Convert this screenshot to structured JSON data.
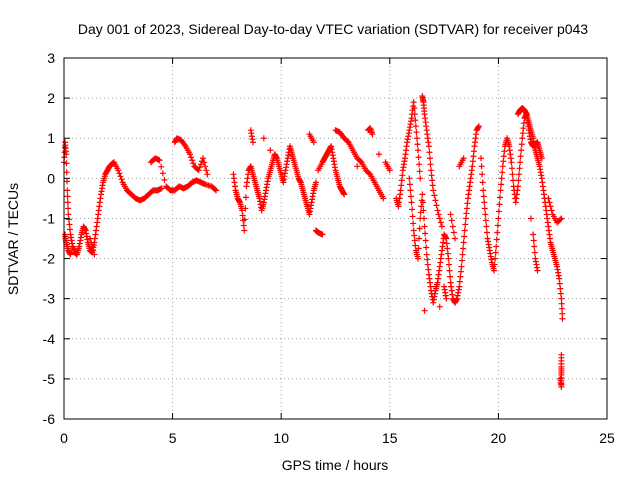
{
  "chart_data": {
    "type": "scatter",
    "title": "Day 001 of 2023, Sidereal Day-to-day VTEC variation (SDTVAR) for receiver p043",
    "xlabel": "GPS time / hours",
    "ylabel": "SDTVAR / TECUs",
    "xlim": [
      0,
      25
    ],
    "ylim": [
      -6,
      3
    ],
    "xticks": [
      "0",
      "5",
      "10",
      "15",
      "20",
      "25"
    ],
    "yticks": [
      "-6",
      "-5",
      "-4",
      "-3",
      "-2",
      "-1",
      "0",
      "1",
      "2",
      "3"
    ],
    "grid": true,
    "marker": "+",
    "series_color": "#ff0000",
    "series": [
      {
        "name": "SDTVAR",
        "points": [
          [
            0.0,
            0.4
          ],
          [
            0.05,
            0.9
          ],
          [
            0.1,
            0.6
          ],
          [
            0.15,
            -0.3
          ],
          [
            0.2,
            -0.9
          ],
          [
            0.3,
            -1.4
          ],
          [
            0.4,
            -1.7
          ],
          [
            0.5,
            -1.85
          ],
          [
            0.6,
            -1.9
          ],
          [
            0.7,
            -1.7
          ],
          [
            0.8,
            -1.4
          ],
          [
            0.9,
            -1.2
          ],
          [
            1.0,
            -1.3
          ],
          [
            1.1,
            -1.6
          ],
          [
            1.2,
            -1.8
          ],
          [
            1.3,
            -1.85
          ],
          [
            1.4,
            -1.6
          ],
          [
            1.5,
            -1.2
          ],
          [
            1.6,
            -0.8
          ],
          [
            1.7,
            -0.4
          ],
          [
            1.8,
            -0.1
          ],
          [
            1.9,
            0.1
          ],
          [
            2.0,
            0.2
          ],
          [
            2.1,
            0.3
          ],
          [
            2.2,
            0.35
          ],
          [
            2.3,
            0.4
          ],
          [
            2.5,
            0.2
          ],
          [
            2.7,
            -0.1
          ],
          [
            2.9,
            -0.3
          ],
          [
            3.1,
            -0.4
          ],
          [
            3.3,
            -0.5
          ],
          [
            3.5,
            -0.55
          ],
          [
            3.7,
            -0.5
          ],
          [
            3.9,
            -0.4
          ],
          [
            4.1,
            -0.3
          ],
          [
            4.3,
            -0.3
          ],
          [
            4.5,
            -0.25
          ],
          [
            4.0,
            0.4
          ],
          [
            4.2,
            0.5
          ],
          [
            4.4,
            0.45
          ],
          [
            4.7,
            -0.2
          ],
          [
            4.9,
            -0.3
          ],
          [
            5.1,
            -0.3
          ],
          [
            5.3,
            -0.2
          ],
          [
            5.5,
            -0.25
          ],
          [
            5.7,
            -0.2
          ],
          [
            5.9,
            -0.1
          ],
          [
            6.1,
            -0.05
          ],
          [
            6.3,
            -0.1
          ],
          [
            6.5,
            -0.15
          ],
          [
            6.8,
            -0.2
          ],
          [
            7.0,
            -0.3
          ],
          [
            5.1,
            0.9
          ],
          [
            5.2,
            1.0
          ],
          [
            5.4,
            0.95
          ],
          [
            5.6,
            0.8
          ],
          [
            5.8,
            0.6
          ],
          [
            6.0,
            0.3
          ],
          [
            6.2,
            0.2
          ],
          [
            6.4,
            0.5
          ],
          [
            6.6,
            0.1
          ],
          [
            0.05,
            -1.4
          ],
          [
            0.1,
            -1.6
          ],
          [
            0.2,
            -1.8
          ],
          [
            0.3,
            -1.9
          ],
          [
            1.2,
            -1.5
          ],
          [
            1.4,
            -1.9
          ],
          [
            7.8,
            0.1
          ],
          [
            7.9,
            -0.3
          ],
          [
            8.0,
            -0.5
          ],
          [
            8.1,
            -0.6
          ],
          [
            8.2,
            -0.8
          ],
          [
            8.3,
            -1.3
          ],
          [
            8.4,
            -0.2
          ],
          [
            8.5,
            0.2
          ],
          [
            8.6,
            0.3
          ],
          [
            8.7,
            0.1
          ],
          [
            8.8,
            -0.1
          ],
          [
            8.9,
            -0.3
          ],
          [
            9.0,
            -0.5
          ],
          [
            9.1,
            -0.8
          ],
          [
            9.2,
            -0.6
          ],
          [
            9.3,
            -0.3
          ],
          [
            9.4,
            0.0
          ],
          [
            9.5,
            0.2
          ],
          [
            9.6,
            0.4
          ],
          [
            9.7,
            0.6
          ],
          [
            9.8,
            0.5
          ],
          [
            9.9,
            0.3
          ],
          [
            10.0,
            0.1
          ],
          [
            10.1,
            -0.1
          ],
          [
            10.2,
            0.2
          ],
          [
            10.3,
            0.5
          ],
          [
            10.4,
            0.8
          ],
          [
            10.5,
            0.6
          ],
          [
            10.6,
            0.4
          ],
          [
            10.7,
            0.2
          ],
          [
            10.8,
            0.0
          ],
          [
            10.9,
            -0.1
          ],
          [
            11.0,
            -0.3
          ],
          [
            11.1,
            -0.5
          ],
          [
            11.2,
            -0.7
          ],
          [
            11.3,
            -0.9
          ],
          [
            11.4,
            -0.6
          ],
          [
            11.5,
            -0.3
          ],
          [
            11.6,
            -0.1
          ],
          [
            8.6,
            1.2
          ],
          [
            8.7,
            0.9
          ],
          [
            9.2,
            1.0
          ],
          [
            9.5,
            0.7
          ],
          [
            11.3,
            1.1
          ],
          [
            11.5,
            0.9
          ],
          [
            11.6,
            -1.3
          ],
          [
            11.7,
            -1.35
          ],
          [
            11.9,
            -1.4
          ],
          [
            11.7,
            0.2
          ],
          [
            11.9,
            0.4
          ],
          [
            12.0,
            0.5
          ],
          [
            12.1,
            0.6
          ],
          [
            12.2,
            0.7
          ],
          [
            12.3,
            0.8
          ],
          [
            12.4,
            0.5
          ],
          [
            12.5,
            0.2
          ],
          [
            12.6,
            0.0
          ],
          [
            12.7,
            -0.2
          ],
          [
            12.8,
            -0.3
          ],
          [
            12.9,
            -0.4
          ],
          [
            12.5,
            1.2
          ],
          [
            12.7,
            1.15
          ],
          [
            12.9,
            1.0
          ],
          [
            13.1,
            0.9
          ],
          [
            13.3,
            0.7
          ],
          [
            13.5,
            0.5
          ],
          [
            13.7,
            0.4
          ],
          [
            13.9,
            0.2
          ],
          [
            14.1,
            0.1
          ],
          [
            14.3,
            -0.1
          ],
          [
            14.5,
            -0.3
          ],
          [
            14.7,
            -0.5
          ],
          [
            13.5,
            0.3
          ],
          [
            14.0,
            1.2
          ],
          [
            14.1,
            1.25
          ],
          [
            14.2,
            1.1
          ],
          [
            14.5,
            0.6
          ],
          [
            14.8,
            0.4
          ],
          [
            15.0,
            0.2
          ],
          [
            15.3,
            -0.5
          ],
          [
            15.4,
            -0.7
          ],
          [
            15.5,
            -0.3
          ],
          [
            15.6,
            0.2
          ],
          [
            15.7,
            0.5
          ],
          [
            15.8,
            0.9
          ],
          [
            15.9,
            1.2
          ],
          [
            16.0,
            1.5
          ],
          [
            16.1,
            1.9
          ],
          [
            16.2,
            1.3
          ],
          [
            16.3,
            0.7
          ],
          [
            16.4,
            0.0
          ],
          [
            15.9,
            0.0
          ],
          [
            16.0,
            -0.6
          ],
          [
            16.1,
            -1.3
          ],
          [
            16.2,
            -1.8
          ],
          [
            16.3,
            -2.0
          ],
          [
            16.4,
            -1.0
          ],
          [
            16.5,
            -0.4
          ],
          [
            16.6,
            -1.2
          ],
          [
            16.7,
            -1.9
          ],
          [
            16.8,
            -2.4
          ],
          [
            16.9,
            -2.8
          ],
          [
            17.0,
            -3.1
          ],
          [
            17.1,
            -2.8
          ],
          [
            17.2,
            -2.6
          ],
          [
            17.3,
            -2.2
          ],
          [
            17.4,
            -1.8
          ],
          [
            17.5,
            -1.4
          ],
          [
            17.6,
            -1.5
          ],
          [
            17.7,
            -2.0
          ],
          [
            17.8,
            -2.6
          ],
          [
            17.9,
            -3.0
          ],
          [
            18.0,
            -3.1
          ],
          [
            18.1,
            -3.0
          ],
          [
            18.2,
            -2.7
          ],
          [
            18.3,
            -2.2
          ],
          [
            18.4,
            -1.6
          ],
          [
            18.5,
            -1.0
          ],
          [
            18.6,
            -0.5
          ],
          [
            18.7,
            -0.1
          ],
          [
            18.8,
            0.3
          ],
          [
            18.9,
            0.8
          ],
          [
            19.0,
            1.2
          ],
          [
            19.1,
            1.3
          ],
          [
            16.5,
            2.05
          ],
          [
            16.55,
            1.9
          ],
          [
            16.6,
            1.6
          ],
          [
            16.7,
            1.2
          ],
          [
            16.8,
            0.8
          ],
          [
            16.9,
            0.2
          ],
          [
            17.0,
            -0.3
          ],
          [
            17.2,
            -0.8
          ],
          [
            17.4,
            -1.2
          ],
          [
            17.8,
            -0.9
          ],
          [
            18.0,
            -1.5
          ],
          [
            18.2,
            0.3
          ],
          [
            18.4,
            0.5
          ],
          [
            17.5,
            -2.7
          ],
          [
            17.6,
            -3.0
          ],
          [
            16.6,
            -3.3
          ],
          [
            17.3,
            -3.2
          ],
          [
            19.2,
            0.5
          ],
          [
            19.3,
            -0.3
          ],
          [
            19.4,
            -0.9
          ],
          [
            19.5,
            -1.5
          ],
          [
            19.6,
            -1.8
          ],
          [
            19.7,
            -2.1
          ],
          [
            19.8,
            -2.3
          ],
          [
            19.9,
            -1.7
          ],
          [
            20.0,
            -1.0
          ],
          [
            20.1,
            -0.3
          ],
          [
            20.2,
            0.3
          ],
          [
            20.3,
            0.8
          ],
          [
            20.4,
            1.0
          ],
          [
            20.5,
            0.8
          ],
          [
            20.6,
            0.4
          ],
          [
            20.7,
            -0.2
          ],
          [
            20.8,
            -0.6
          ],
          [
            20.9,
            -0.2
          ],
          [
            21.0,
            0.4
          ],
          [
            21.1,
            1.0
          ],
          [
            21.2,
            1.5
          ],
          [
            21.3,
            1.6
          ],
          [
            21.4,
            1.4
          ],
          [
            21.5,
            1.2
          ],
          [
            21.6,
            1.0
          ],
          [
            21.7,
            0.7
          ],
          [
            21.8,
            0.5
          ],
          [
            21.9,
            0.3
          ],
          [
            22.0,
            0.0
          ],
          [
            22.1,
            -0.4
          ],
          [
            22.2,
            -0.8
          ],
          [
            22.3,
            -1.2
          ],
          [
            22.4,
            -1.6
          ],
          [
            22.5,
            -1.8
          ],
          [
            22.6,
            -2.0
          ],
          [
            22.7,
            -2.2
          ],
          [
            22.8,
            -2.5
          ],
          [
            22.9,
            -3.0
          ],
          [
            22.95,
            -3.5
          ],
          [
            20.9,
            1.6
          ],
          [
            21.0,
            1.7
          ],
          [
            21.1,
            1.75
          ],
          [
            21.2,
            1.7
          ],
          [
            21.3,
            1.6
          ],
          [
            21.4,
            1.2
          ],
          [
            21.5,
            0.9
          ],
          [
            21.6,
            0.8
          ],
          [
            21.7,
            0.85
          ],
          [
            21.8,
            0.9
          ],
          [
            21.9,
            0.7
          ],
          [
            22.0,
            0.5
          ],
          [
            21.6,
            -1.4
          ],
          [
            21.7,
            -2.0
          ],
          [
            21.8,
            -2.3
          ],
          [
            21.5,
            -1.0
          ],
          [
            22.3,
            -0.5
          ],
          [
            22.5,
            -0.9
          ],
          [
            22.7,
            -1.1
          ],
          [
            22.9,
            -1.0
          ],
          [
            22.9,
            -4.4
          ],
          [
            22.9,
            -4.7
          ],
          [
            22.9,
            -4.9
          ],
          [
            22.9,
            -5.2
          ],
          [
            22.85,
            -5.0
          ]
        ]
      }
    ]
  }
}
